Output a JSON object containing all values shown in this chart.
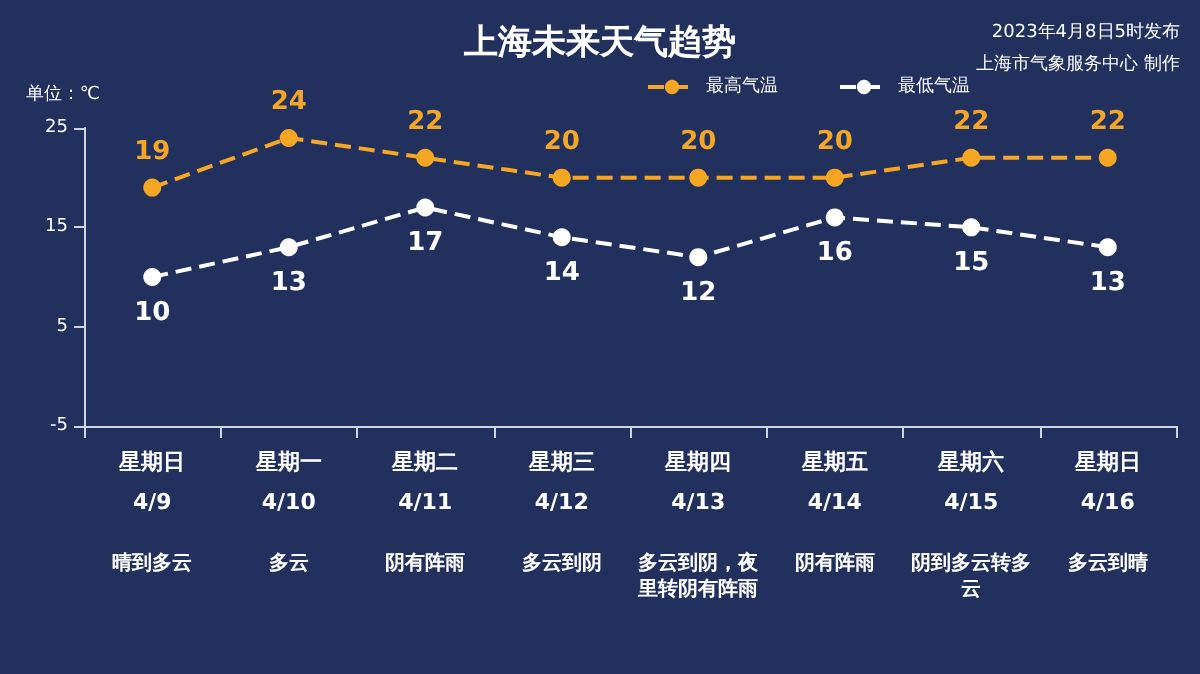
{
  "chart_data": {
    "type": "line",
    "title": "上海未来天气趋势",
    "ylabel": "单位：℃",
    "annotations": [
      "2023年4月8日5时发布",
      "上海市气象服务中心 制作"
    ],
    "categories": [
      "星期日\n4/9\n晴到多云",
      "星期一\n4/10\n多云",
      "星期二\n4/11\n阴有阵雨",
      "星期三\n4/12\n多云到阴",
      "星期四\n4/13\n多云到阴，夜里转阴有阵雨",
      "星期五\n4/14\n阴有阵雨",
      "星期六\n4/15\n阴到多云转多云",
      "星期日\n4/16\n多云到晴"
    ],
    "series": [
      {
        "name": "最高气温",
        "color": "#f5a623",
        "values": [
          19,
          24,
          22,
          20,
          20,
          20,
          22,
          22
        ]
      },
      {
        "name": "最低气温",
        "color": "#ffffff",
        "values": [
          10,
          13,
          17,
          14,
          12,
          16,
          15,
          13
        ]
      }
    ],
    "ylim": [
      -5,
      25
    ],
    "yticks": [
      -5,
      5,
      15,
      25
    ],
    "data_labels": true,
    "grid": false,
    "legend": "top right",
    "marker": "circle",
    "line_style": "dashed"
  }
}
